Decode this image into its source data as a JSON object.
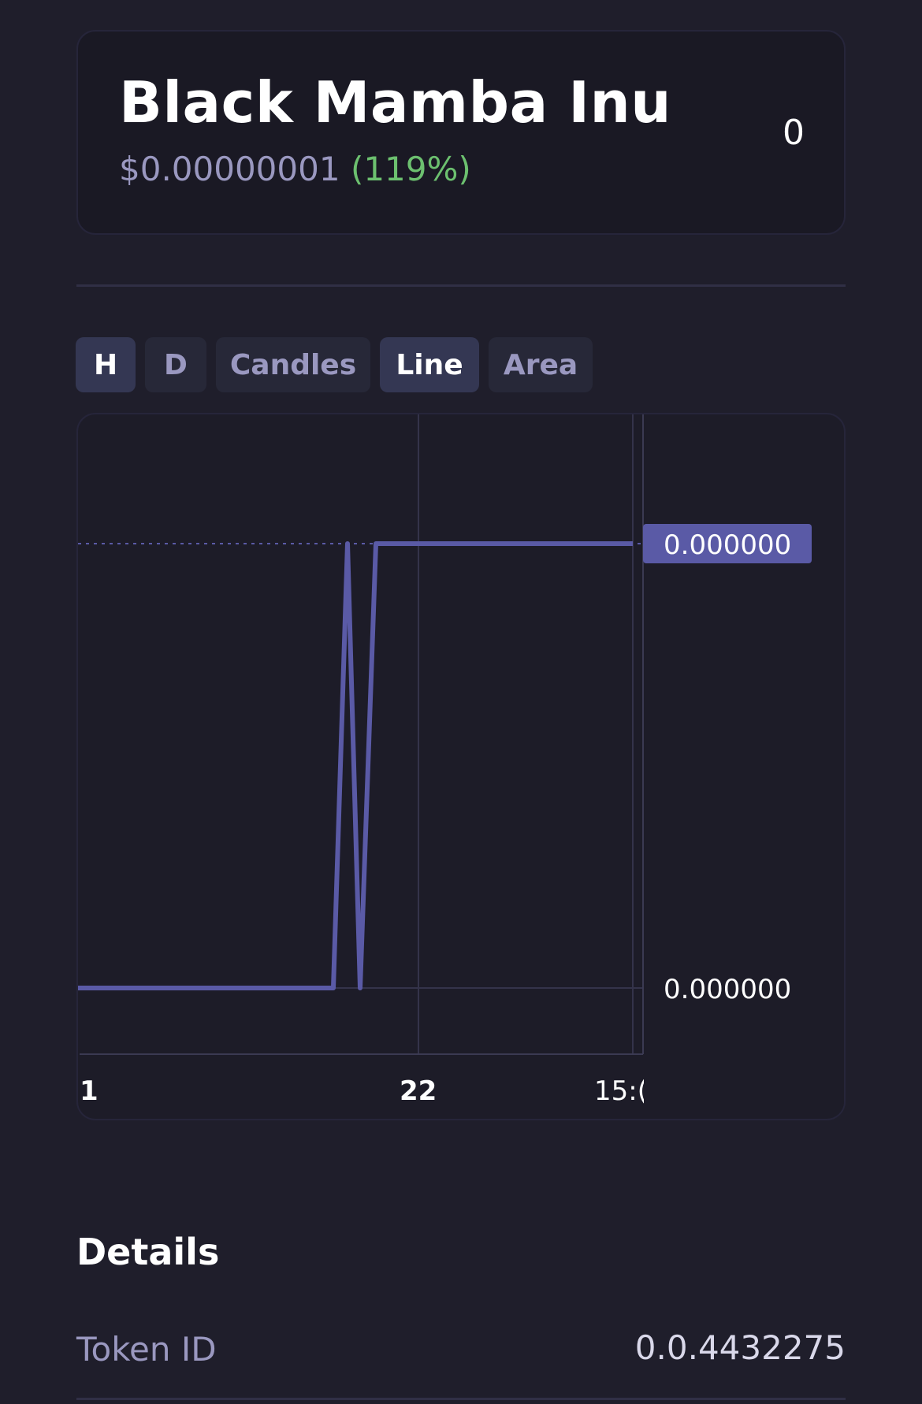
{
  "token": {
    "name": "Black Mamba Inu",
    "price": "$0.00000001",
    "change": "(119%)",
    "balance": "0"
  },
  "chart_controls": {
    "buttons": [
      {
        "label": "H",
        "active": true
      },
      {
        "label": "D",
        "active": false
      },
      {
        "label": "Candles",
        "active": false
      },
      {
        "label": "Line",
        "active": true
      },
      {
        "label": "Area",
        "active": false
      }
    ]
  },
  "chart_data": {
    "type": "line",
    "title": "",
    "xlabel": "",
    "ylabel": "",
    "x_tick_labels": [
      "1",
      "22",
      "15:("
    ],
    "y_tick_labels": [
      "0.000000",
      "0.000000"
    ],
    "current_value_label": "0.000000",
    "series": [
      {
        "values": [
          0,
          0,
          0,
          0,
          0,
          0,
          0,
          0,
          0,
          1,
          0,
          1,
          1,
          1,
          1,
          1,
          1,
          1,
          1,
          1
        ]
      }
    ],
    "ylim": [
      0,
      1
    ],
    "grid": true,
    "colors": {
      "line": "#5a5aa6",
      "price_label_bg": "#5a5aa6",
      "grid": "#34334a"
    }
  },
  "details": {
    "title": "Details",
    "rows": [
      {
        "label": "Token ID",
        "value": "0.0.4432275"
      }
    ]
  },
  "colors": {
    "background": "#1f1e2b",
    "card": "#1a1924",
    "accent_text": "#9a98c0",
    "positive": "#6cc06f"
  }
}
